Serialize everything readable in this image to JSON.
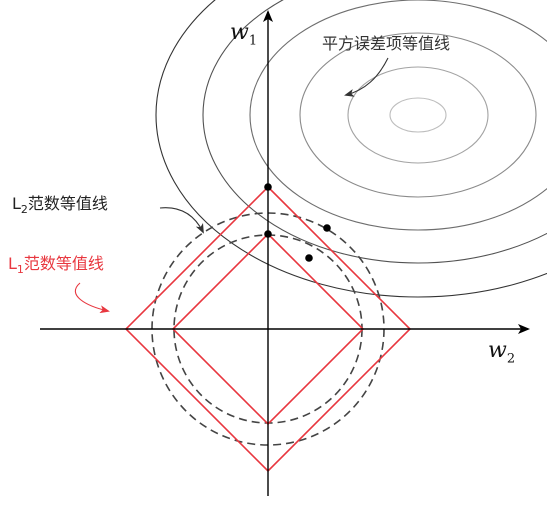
{
  "axes": {
    "x_label": "w",
    "x_sub": "2",
    "y_label": "w",
    "y_sub": "1"
  },
  "annotations": {
    "squared_error_contour": "平方误差项等值线",
    "l2_contour_prefix": "L",
    "l2_contour_sub": "2",
    "l2_contour_text": "范数等值线",
    "l1_contour_prefix": "L",
    "l1_contour_sub": "1",
    "l1_contour_text": "范数等值线"
  },
  "colors": {
    "axis": "#000000",
    "squared_error_contours": [
      "#bdbdbd",
      "#a3a3a3",
      "#8a8a8a",
      "#6e6e6e",
      "#525252",
      "#333333"
    ],
    "l2_contour": "#444444",
    "l1_contour": "#e8373f",
    "intersection_point": "#000000"
  }
}
